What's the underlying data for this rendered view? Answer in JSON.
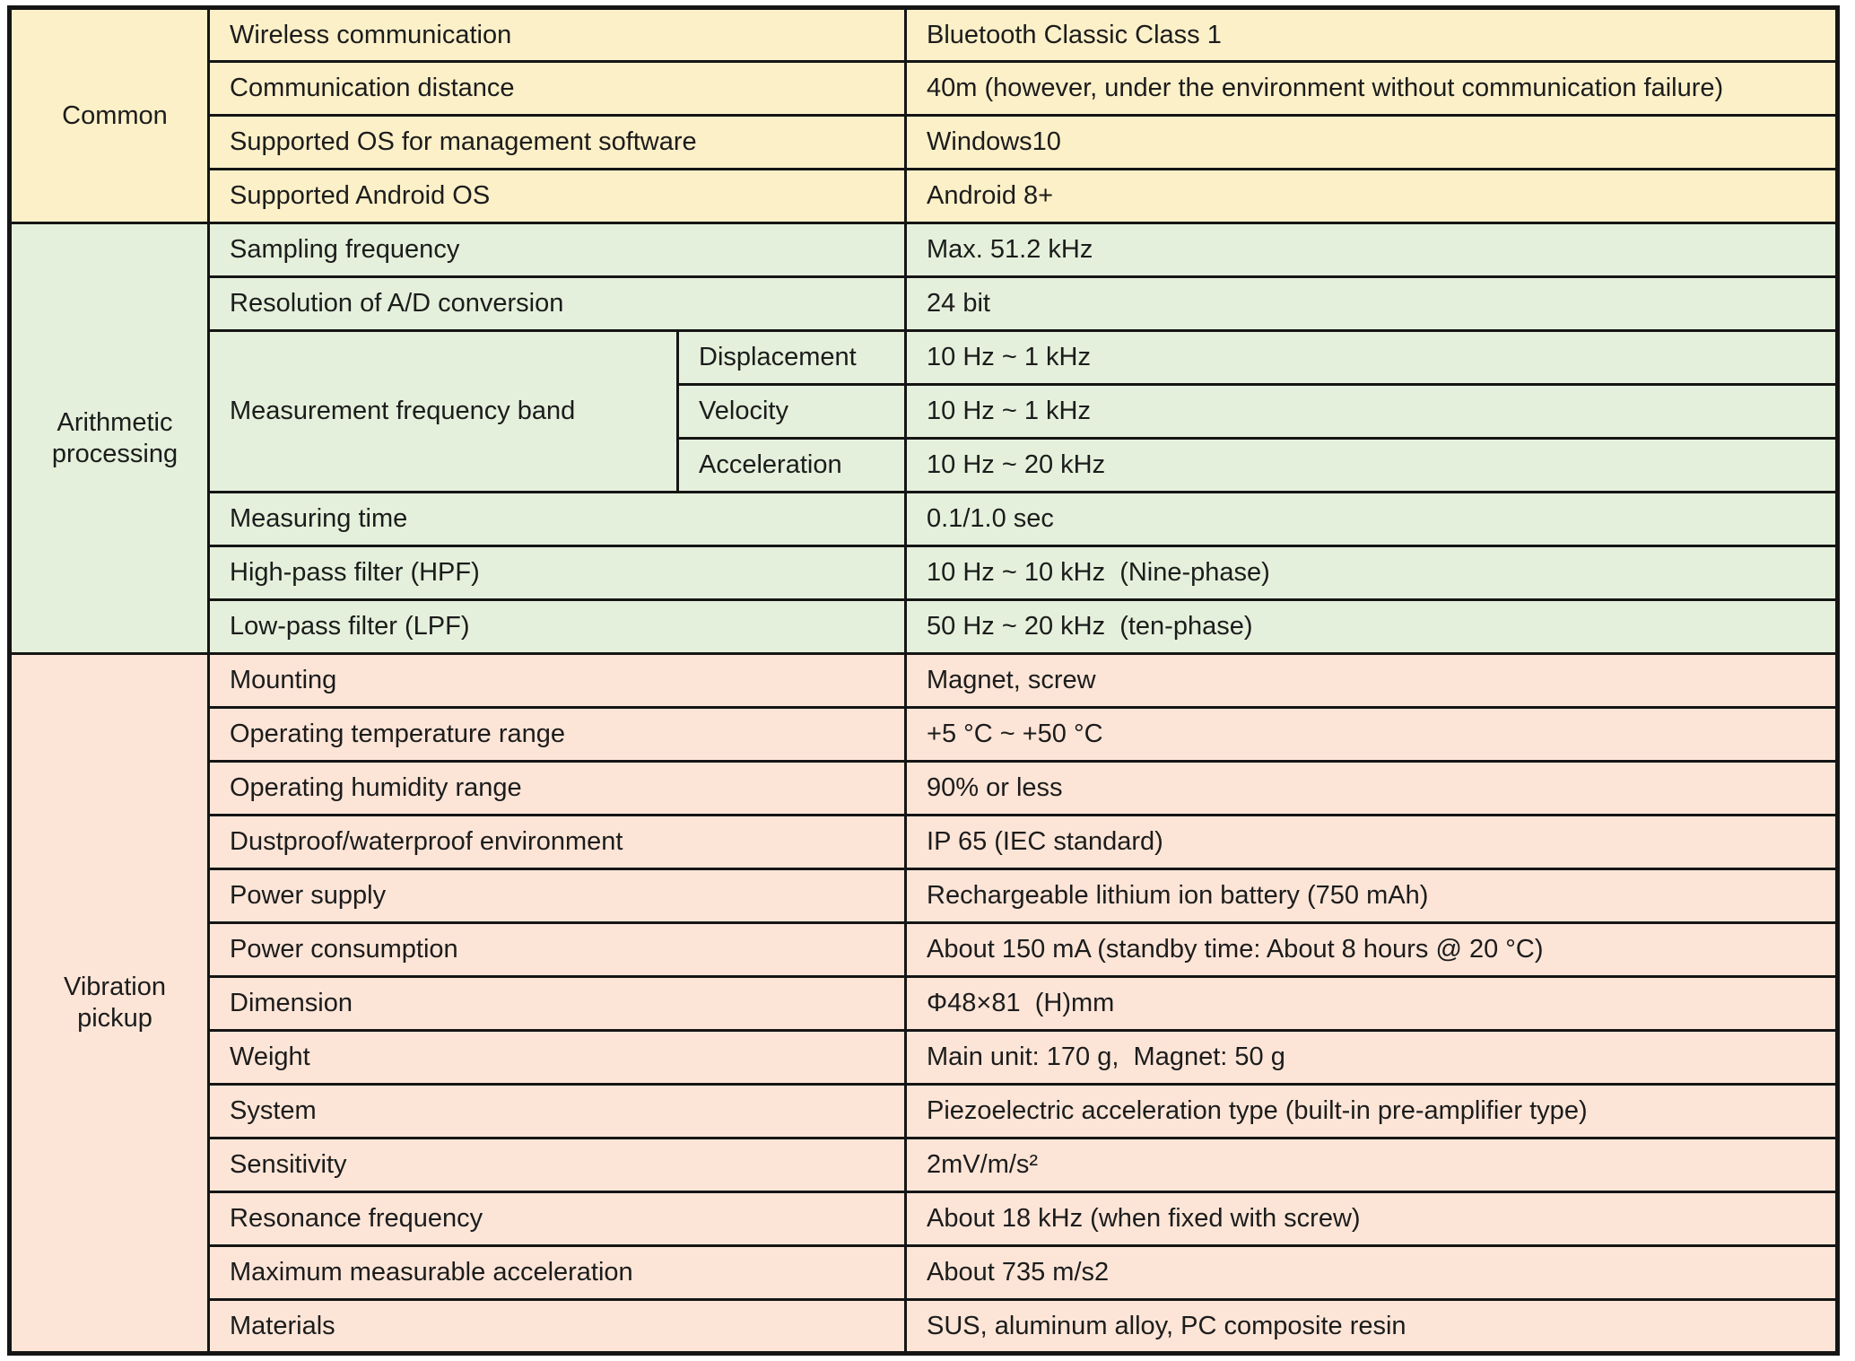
{
  "table": {
    "title_hint": "Product specification table",
    "colors": {
      "common_bg": "#fcf0c8",
      "arithmetic_bg": "#e4f0db",
      "vibration_bg": "#fce5d7",
      "border": "#151515",
      "text": "#1c1c1c"
    },
    "sections": [
      {
        "category": "Common",
        "rows": [
          {
            "label": "Wireless communication",
            "value": "Bluetooth Classic Class 1"
          },
          {
            "label": "Communication distance",
            "value": "40m (however, under the environment without communication failure)"
          },
          {
            "label": "Supported OS for management software",
            "value": "Windows10"
          },
          {
            "label": "Supported Android OS",
            "value": "Android 8+"
          }
        ]
      },
      {
        "category": "Arithmetic processing",
        "rows": [
          {
            "label": "Sampling frequency",
            "value": "Max. 51.2 kHz"
          },
          {
            "label": "Resolution of A/D conversion",
            "value": "24 bit"
          },
          {
            "group_label": "Measurement frequency band",
            "sub": "Displacement",
            "value": "10 Hz ~ 1 kHz"
          },
          {
            "sub": "Velocity",
            "value": "10 Hz ~ 1 kHz"
          },
          {
            "sub": "Acceleration",
            "value": "10 Hz ~ 20 kHz"
          },
          {
            "label": "Measuring time",
            "value": "0.1/1.0 sec"
          },
          {
            "label": "High-pass filter (HPF)",
            "value": "10 Hz ~ 10 kHz  (Nine-phase)"
          },
          {
            "label": "Low-pass filter (LPF)",
            "value": "50 Hz ~ 20 kHz  (ten-phase)"
          }
        ]
      },
      {
        "category": "Vibration pickup",
        "rows": [
          {
            "label": "Mounting",
            "value": "Magnet, screw"
          },
          {
            "label": "Operating temperature range",
            "value": "+5 °C ~ +50 °C"
          },
          {
            "label": "Operating humidity range",
            "value": "90% or less"
          },
          {
            "label": "Dustproof/waterproof environment",
            "value": "IP 65 (IEC standard)"
          },
          {
            "label": "Power supply",
            "value": "Rechargeable lithium ion battery (750 mAh)"
          },
          {
            "label": "Power consumption",
            "value": "About 150 mA (standby time: About 8 hours @ 20 °C)"
          },
          {
            "label": "Dimension",
            "value": "Φ48×81  (H)mm"
          },
          {
            "label": "Weight",
            "value": "Main unit: 170 g,  Magnet: 50 g"
          },
          {
            "label": "System",
            "value": "Piezoelectric acceleration type (built-in pre-amplifier type)"
          },
          {
            "label": "Sensitivity",
            "value": "2mV/m/s²"
          },
          {
            "label": "Resonance frequency",
            "value": "About 18 kHz (when fixed with screw)"
          },
          {
            "label": "Maximum measurable acceleration",
            "value": "About 735 m/s2"
          },
          {
            "label": "Materials",
            "value": "SUS, aluminum alloy, PC composite resin"
          }
        ]
      }
    ]
  }
}
